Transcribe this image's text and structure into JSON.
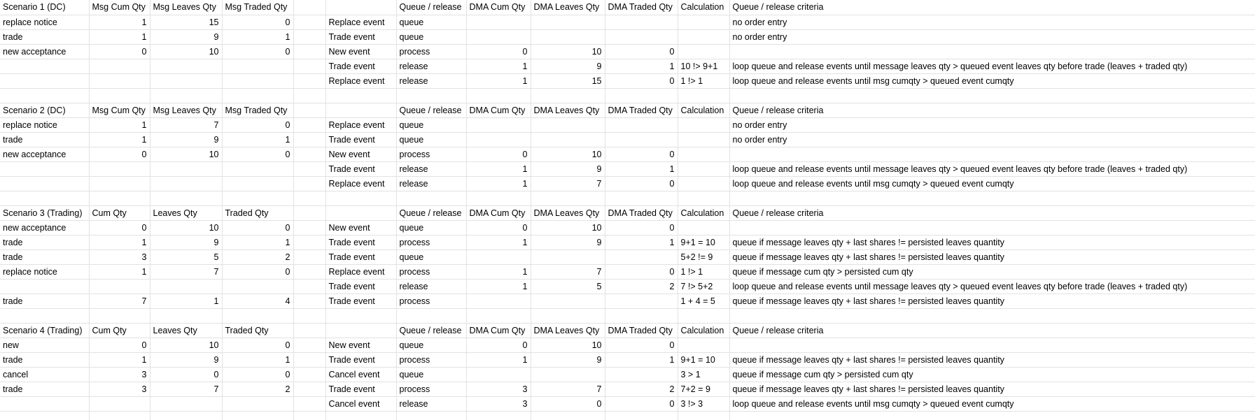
{
  "columns": [
    "A",
    "B",
    "C",
    "D",
    "E",
    "F",
    "G",
    "H",
    "I",
    "J",
    "K",
    "L"
  ],
  "rows": [
    [
      "Scenario 1 (DC)",
      "Msg Cum Qty",
      "Msg Leaves Qty",
      "Msg Traded Qty",
      "",
      "",
      "Queue / release",
      "DMA Cum Qty",
      "DMA Leaves Qty",
      "DMA Traded Qty",
      "Calculation",
      "Queue / release criteria"
    ],
    [
      "replace notice",
      "1",
      "15",
      "0",
      "",
      "Replace event",
      "queue",
      "",
      "",
      "",
      "",
      "no order entry"
    ],
    [
      "trade",
      "1",
      "9",
      "1",
      "",
      "Trade event",
      "queue",
      "",
      "",
      "",
      "",
      "no order entry"
    ],
    [
      "new acceptance",
      "0",
      "10",
      "0",
      "",
      "New event",
      "process",
      "0",
      "10",
      "0",
      "",
      ""
    ],
    [
      "",
      "",
      "",
      "",
      "",
      "Trade event",
      "release",
      "1",
      "9",
      "1",
      "10 !> 9+1",
      "loop queue and release events until message leaves qty > queued event leaves qty before trade (leaves + traded qty)"
    ],
    [
      "",
      "",
      "",
      "",
      "",
      "Replace event",
      "release",
      "1",
      "15",
      "0",
      "1 !> 1",
      "loop queue and release events until msg cumqty > queued event cumqty"
    ],
    [
      "",
      "",
      "",
      "",
      "",
      "",
      "",
      "",
      "",
      "",
      "",
      ""
    ],
    [
      "Scenario 2 (DC)",
      "Msg Cum Qty",
      "Msg Leaves Qty",
      "Msg Traded Qty",
      "",
      "",
      "Queue / release",
      "DMA Cum Qty",
      "DMA Leaves Qty",
      "DMA Traded Qty",
      "Calculation",
      "Queue / release criteria"
    ],
    [
      "replace notice",
      "1",
      "7",
      "0",
      "",
      "Replace event",
      "queue",
      "",
      "",
      "",
      "",
      "no order entry"
    ],
    [
      "trade",
      "1",
      "9",
      "1",
      "",
      "Trade event",
      "queue",
      "",
      "",
      "",
      "",
      "no order entry"
    ],
    [
      "new acceptance",
      "0",
      "10",
      "0",
      "",
      "New event",
      "process",
      "0",
      "10",
      "0",
      "",
      ""
    ],
    [
      "",
      "",
      "",
      "",
      "",
      "Trade event",
      "release",
      "1",
      "9",
      "1",
      "",
      "loop queue and release events until message leaves qty > queued event leaves qty before trade (leaves + traded qty)"
    ],
    [
      "",
      "",
      "",
      "",
      "",
      "Replace event",
      "release",
      "1",
      "7",
      "0",
      "",
      "loop queue and release events until msg cumqty > queued event cumqty"
    ],
    [
      "",
      "",
      "",
      "",
      "",
      "",
      "",
      "",
      "",
      "",
      "",
      ""
    ],
    [
      "Scenario 3 (Trading)",
      "Cum Qty",
      "Leaves Qty",
      "Traded Qty",
      "",
      "",
      "Queue / release",
      "DMA Cum Qty",
      "DMA Leaves Qty",
      "DMA Traded Qty",
      "Calculation",
      "Queue / release criteria"
    ],
    [
      "new acceptance",
      "0",
      "10",
      "0",
      "",
      "New event",
      "queue",
      "0",
      "10",
      "0",
      "",
      ""
    ],
    [
      "trade",
      "1",
      "9",
      "1",
      "",
      "Trade event",
      "process",
      "1",
      "9",
      "1",
      "9+1 = 10",
      "queue if message leaves qty + last shares != persisted leaves quantity"
    ],
    [
      "trade",
      "3",
      "5",
      "2",
      "",
      "Trade event",
      "queue",
      "",
      "",
      "",
      "5+2 != 9",
      "queue if message leaves qty + last shares != persisted leaves quantity"
    ],
    [
      "replace notice",
      "1",
      "7",
      "0",
      "",
      "Replace event",
      "process",
      "1",
      "7",
      "0",
      "1 !> 1",
      "queue if message cum qty > persisted cum qty"
    ],
    [
      "",
      "",
      "",
      "",
      "",
      "Trade event",
      "release",
      "1",
      "5",
      "2",
      "7 !> 5+2",
      "loop queue and release events until message leaves qty > queued event leaves qty before trade (leaves + traded qty)"
    ],
    [
      "trade",
      "7",
      "1",
      "4",
      "",
      "Trade event",
      "process",
      "",
      "",
      "",
      "1 + 4 = 5",
      "queue if message leaves qty + last shares != persisted leaves quantity"
    ],
    [
      "",
      "",
      "",
      "",
      "",
      "",
      "",
      "",
      "",
      "",
      "",
      ""
    ],
    [
      "Scenario 4 (Trading)",
      "Cum Qty",
      "Leaves Qty",
      "Traded Qty",
      "",
      "",
      "Queue / release",
      "DMA Cum Qty",
      "DMA Leaves Qty",
      "DMA Traded Qty",
      "Calculation",
      "Queue / release criteria"
    ],
    [
      "new",
      "0",
      "10",
      "0",
      "",
      "New event",
      "queue",
      "0",
      "10",
      "0",
      "",
      ""
    ],
    [
      "trade",
      "1",
      "9",
      "1",
      "",
      "Trade event",
      "process",
      "1",
      "9",
      "1",
      "9+1 = 10",
      "queue if message leaves qty + last shares != persisted leaves quantity"
    ],
    [
      "cancel",
      "3",
      "0",
      "0",
      "",
      "Cancel event",
      "queue",
      "",
      "",
      "",
      "3 > 1",
      "queue if message cum qty > persisted cum qty"
    ],
    [
      "trade",
      "3",
      "7",
      "2",
      "",
      "Trade event",
      "process",
      "3",
      "7",
      "2",
      "7+2 = 9",
      "queue if message leaves qty + last shares != persisted leaves quantity"
    ],
    [
      "",
      "",
      "",
      "",
      "",
      "Cancel event",
      "release",
      "3",
      "0",
      "0",
      "3 !> 3",
      "loop queue and release events until msg cumqty > queued event cumqty"
    ],
    [
      "",
      "",
      "",
      "",
      "",
      "",
      "",
      "",
      "",
      "",
      "",
      ""
    ]
  ]
}
